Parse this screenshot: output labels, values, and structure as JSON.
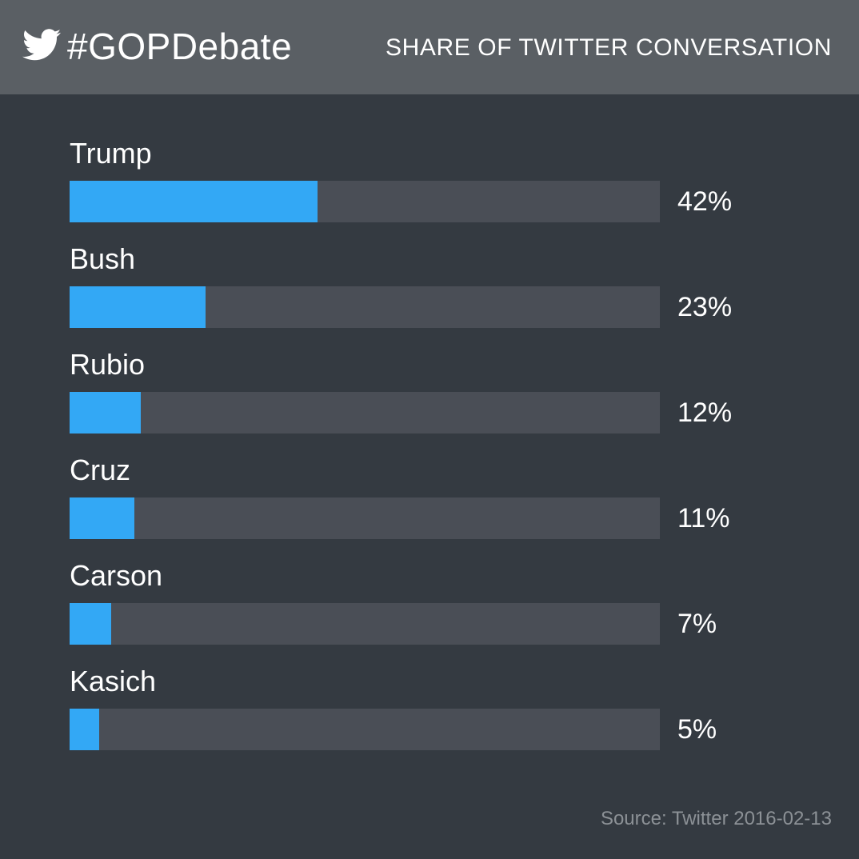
{
  "header": {
    "hashtag": "#GOPDebate",
    "title": "SHARE OF TWITTER CONVERSATION",
    "logo_icon": "twitter-bird-icon"
  },
  "colors": {
    "background": "#343a41",
    "header": "#5a5f64",
    "track": "#4a4e56",
    "bar": "#33a8f5",
    "source_text": "#8c9196"
  },
  "chart_data": {
    "type": "bar",
    "orientation": "horizontal",
    "title": "SHARE OF TWITTER CONVERSATION",
    "categories": [
      "Trump",
      "Bush",
      "Rubio",
      "Cruz",
      "Carson",
      "Kasich"
    ],
    "values": [
      42,
      23,
      12,
      11,
      7,
      5
    ],
    "value_labels": [
      "42%",
      "23%",
      "12%",
      "11%",
      "7%",
      "5%"
    ],
    "xlim": [
      0,
      100
    ],
    "grid": false,
    "legend": "none"
  },
  "source": "Source: Twitter 2016-02-13"
}
